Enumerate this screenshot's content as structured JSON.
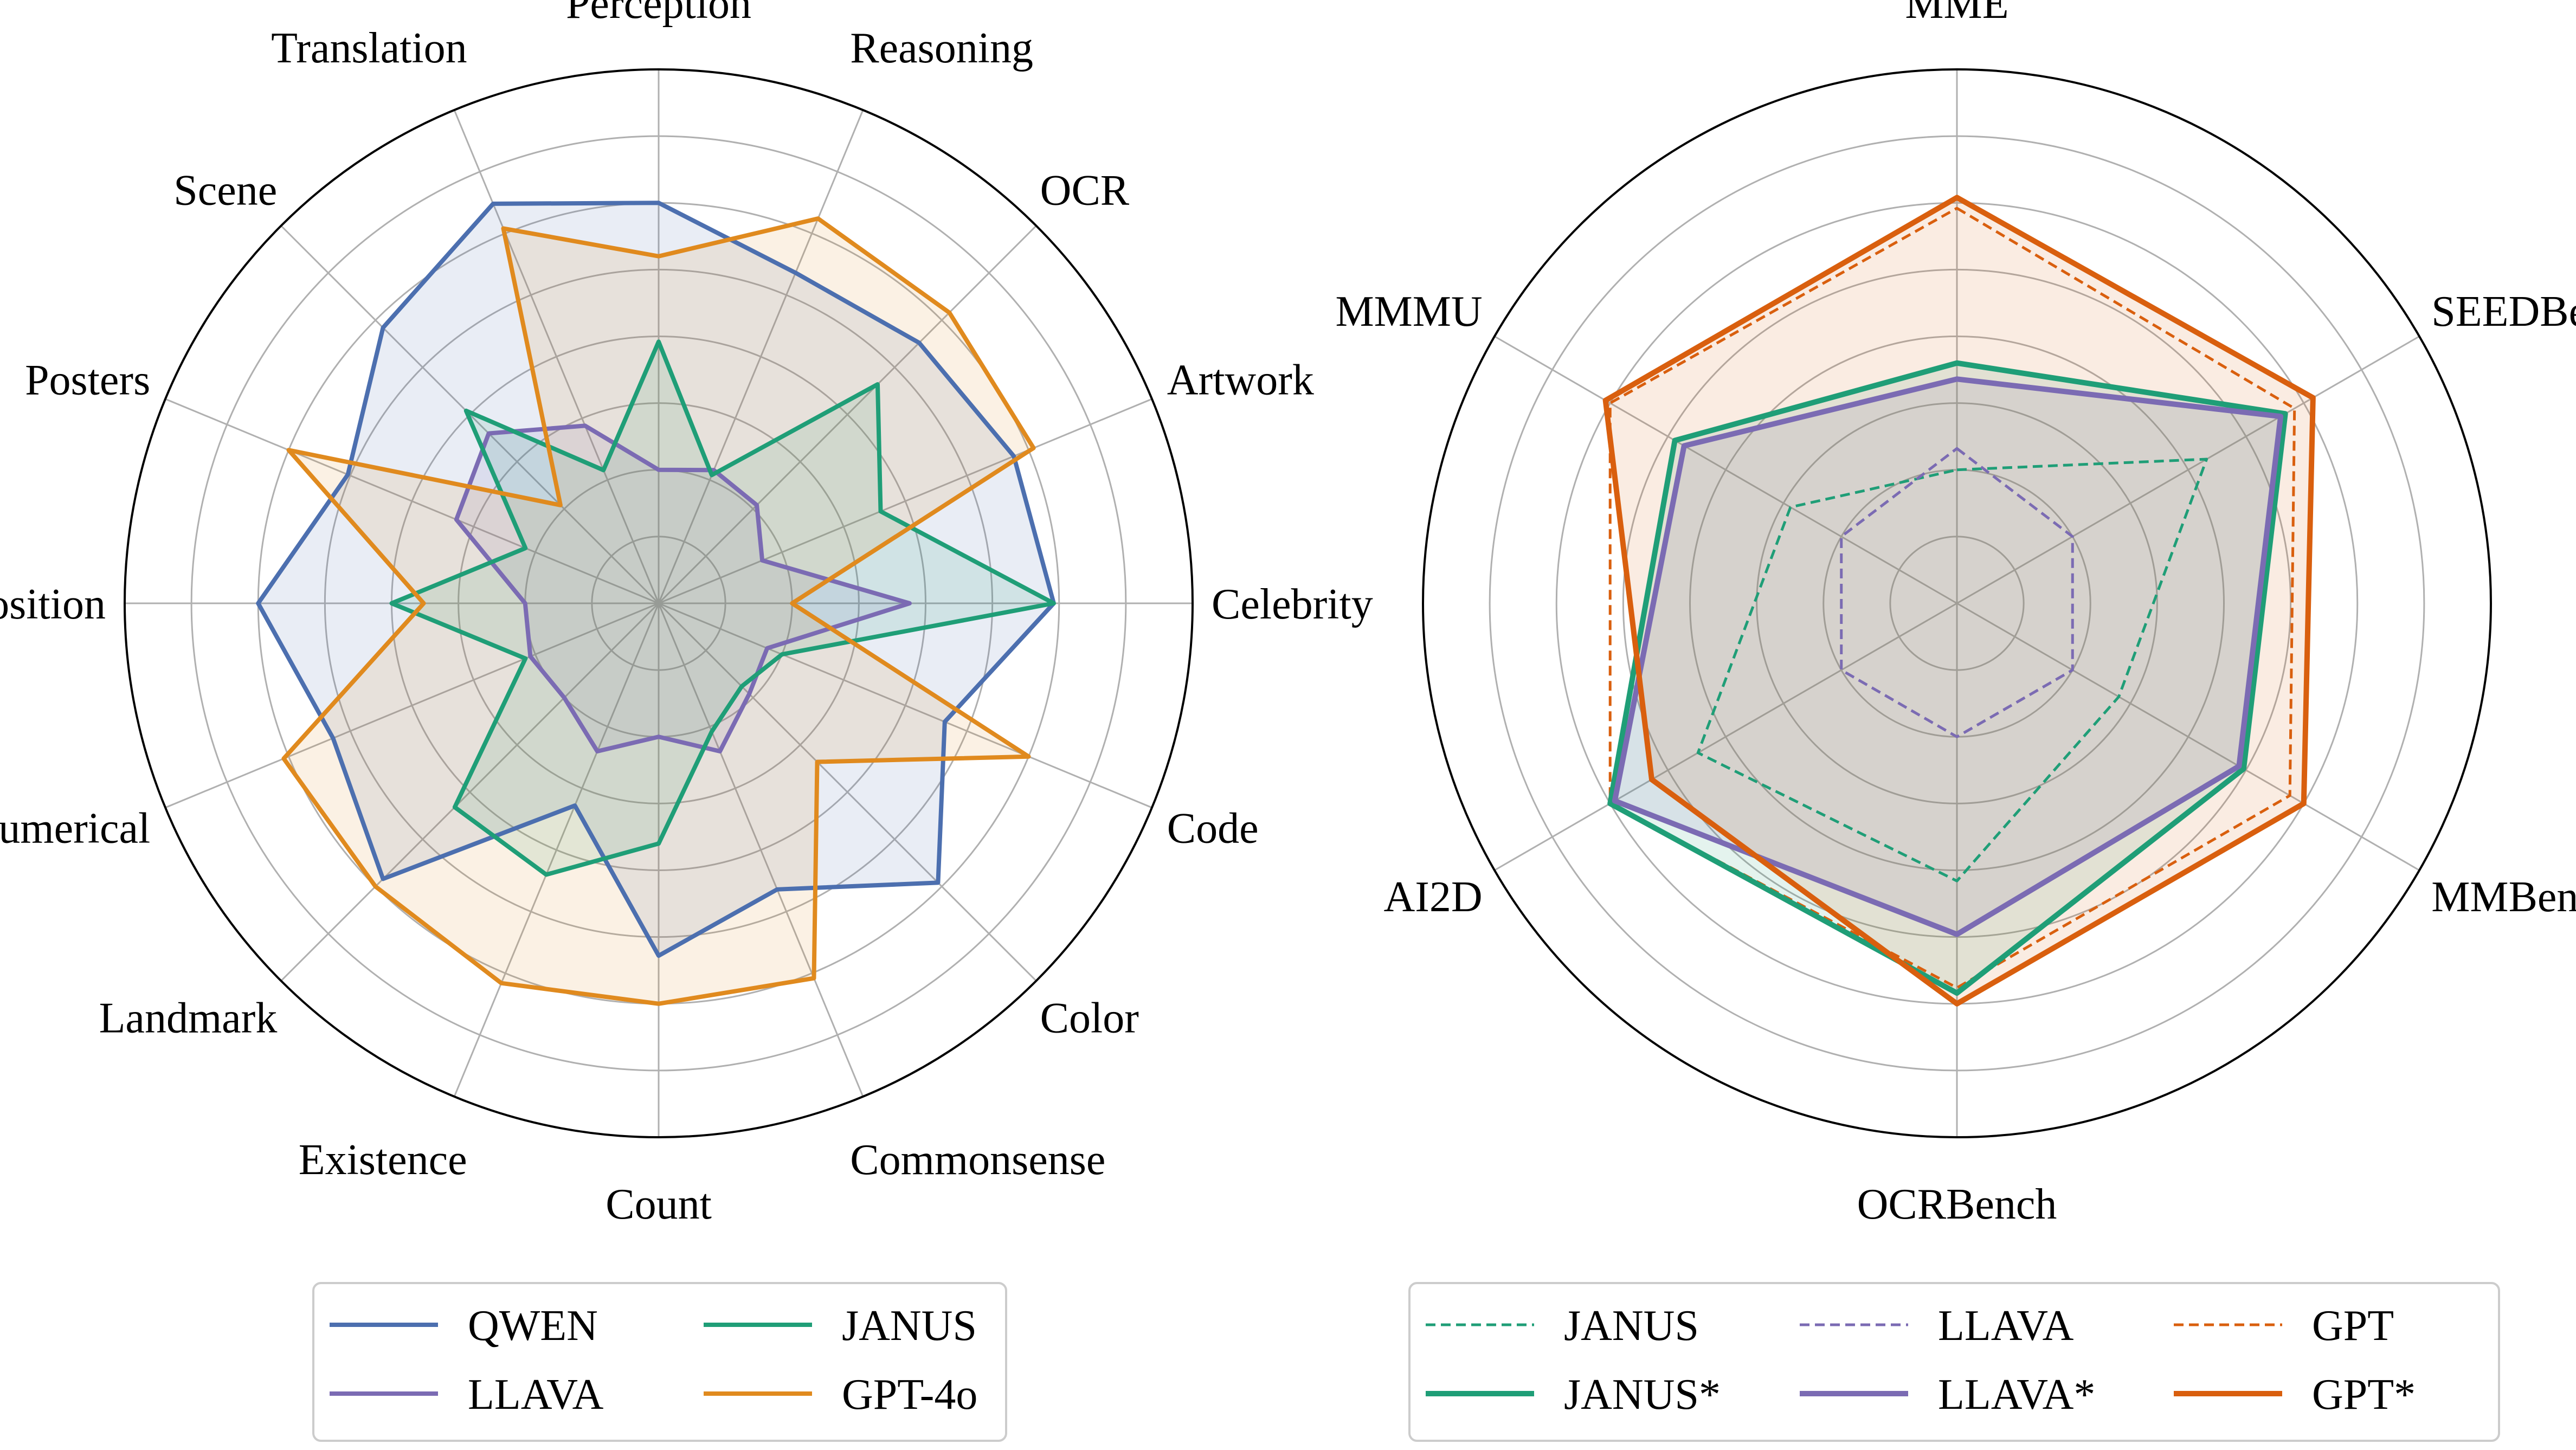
{
  "chart_data": [
    {
      "type": "radar",
      "id": "left-radar",
      "axes": [
        "Perception",
        "Reasoning",
        "OCR",
        "Artwork",
        "Celebrity",
        "Code",
        "Color",
        "Commonsense",
        "Count",
        "Existence",
        "Landmark",
        "Numerical",
        "Position",
        "Posters",
        "Scene",
        "Translation"
      ],
      "r_range": [
        0,
        1
      ],
      "grid_rings": [
        0.125,
        0.25,
        0.375,
        0.5,
        0.625,
        0.75,
        0.875
      ],
      "series": [
        {
          "name": "QWEN",
          "color": "#4c6faf",
          "dash": false,
          "fill": true,
          "width": 8,
          "values": [
            0.75,
            0.67,
            0.69,
            0.72,
            0.74,
            0.58,
            0.74,
            0.58,
            0.66,
            0.41,
            0.73,
            0.66,
            0.75,
            0.63,
            0.73,
            0.81
          ]
        },
        {
          "name": "LLAVA",
          "color": "#7b6bb3",
          "dash": false,
          "fill": true,
          "width": 8,
          "values": [
            0.25,
            0.27,
            0.26,
            0.21,
            0.47,
            0.22,
            0.24,
            0.3,
            0.25,
            0.3,
            0.25,
            0.26,
            0.25,
            0.41,
            0.45,
            0.36
          ]
        },
        {
          "name": "JANUS",
          "color": "#1f9e77",
          "dash": false,
          "fill": true,
          "width": 8,
          "values": [
            0.49,
            0.26,
            0.58,
            0.45,
            0.74,
            0.25,
            0.22,
            0.26,
            0.45,
            0.55,
            0.54,
            0.27,
            0.5,
            0.27,
            0.51,
            0.27
          ]
        },
        {
          "name": "GPT-4o",
          "color": "#e08a1e",
          "dash": false,
          "fill": true,
          "width": 8,
          "values": [
            0.65,
            0.78,
            0.77,
            0.76,
            0.25,
            0.75,
            0.42,
            0.76,
            0.75,
            0.77,
            0.75,
            0.76,
            0.44,
            0.75,
            0.26,
            0.76
          ]
        }
      ],
      "legend": {
        "position": "bottom",
        "columns": 2
      }
    },
    {
      "type": "radar",
      "id": "right-radar",
      "axes": [
        "MME",
        "SEEDBench",
        "MMBench",
        "OCRBench",
        "AI2D",
        "MMMU"
      ],
      "r_range": [
        0,
        1
      ],
      "grid_rings": [
        0.125,
        0.25,
        0.375,
        0.5,
        0.625,
        0.75,
        0.875
      ],
      "series": [
        {
          "name": "JANUS",
          "color": "#1f9e77",
          "dash": true,
          "fill": false,
          "width": 5,
          "values": [
            0.25,
            0.54,
            0.35,
            0.52,
            0.56,
            0.36
          ]
        },
        {
          "name": "LLAVA",
          "color": "#7b6bb3",
          "dash": true,
          "fill": false,
          "width": 5,
          "values": [
            0.29,
            0.25,
            0.25,
            0.25,
            0.25,
            0.25
          ]
        },
        {
          "name": "GPT",
          "color": "#d95f0e",
          "dash": true,
          "fill": false,
          "width": 5,
          "values": [
            0.74,
            0.73,
            0.72,
            0.72,
            0.75,
            0.75
          ]
        },
        {
          "name": "JANUS*",
          "color": "#1f9e77",
          "dash": false,
          "fill": true,
          "width": 10,
          "values": [
            0.45,
            0.71,
            0.62,
            0.73,
            0.75,
            0.61
          ]
        },
        {
          "name": "LLAVA*",
          "color": "#7b6bb3",
          "dash": false,
          "fill": true,
          "width": 10,
          "values": [
            0.42,
            0.7,
            0.61,
            0.62,
            0.74,
            0.59
          ]
        },
        {
          "name": "GPT*",
          "color": "#d95f0e",
          "dash": false,
          "fill": true,
          "width": 10,
          "values": [
            0.76,
            0.77,
            0.75,
            0.75,
            0.66,
            0.76
          ]
        }
      ],
      "legend": {
        "position": "bottom",
        "columns": 3,
        "order": [
          "JANUS",
          "JANUS*",
          "LLAVA",
          "LLAVA*",
          "GPT",
          "GPT*"
        ]
      }
    }
  ]
}
